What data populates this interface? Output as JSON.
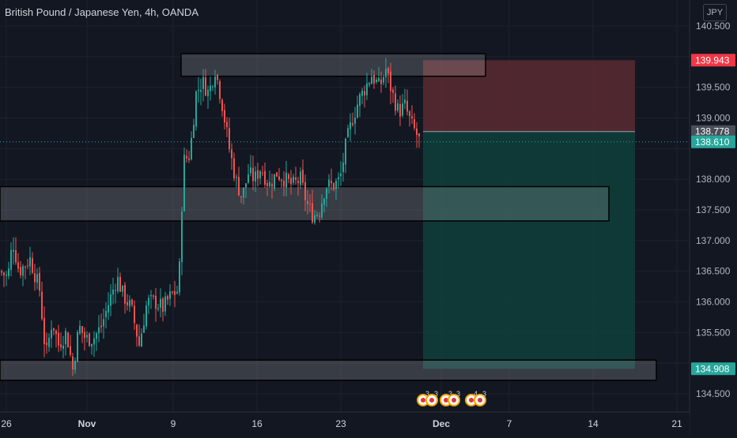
{
  "header": {
    "title": "British Pound / Japanese Yen, 4h, OANDA",
    "currency": "JPY"
  },
  "colors": {
    "background": "#131722",
    "up": "#26a69a",
    "down": "#ef5350",
    "grid": "#1e222d",
    "axis_text": "#b2b5be",
    "stop_zone": "#5a2a30",
    "target_zone": "#0f3d3a",
    "zone_box": "#3a3e49"
  },
  "chart_data": {
    "type": "candlestick",
    "y_ticks": [
      "140.500",
      "139.500",
      "139.000",
      "138.000",
      "137.500",
      "137.000",
      "136.500",
      "136.000",
      "135.500",
      "134.500"
    ],
    "y_range": [
      134.2,
      140.75
    ],
    "x_ticks": [
      "26",
      "Nov",
      "9",
      "16",
      "23",
      "Dec",
      "7",
      "14",
      "21"
    ],
    "price_labels": [
      {
        "text": "139.943",
        "value": 139.943,
        "kind": "stop"
      },
      {
        "text": "138.778",
        "value": 138.778,
        "kind": "entry"
      },
      {
        "text": "138.610",
        "value": 138.61,
        "kind": "current"
      },
      {
        "text": "134.908",
        "value": 134.908,
        "kind": "target"
      }
    ],
    "current_price": 138.61,
    "position": {
      "type": "short",
      "entry": 138.778,
      "stop": 139.943,
      "target": 134.908
    },
    "zones": [
      {
        "top": 140.05,
        "bottom": 139.68
      },
      {
        "top": 137.88,
        "bottom": 137.32
      },
      {
        "top": 135.05,
        "bottom": 134.72
      }
    ],
    "event_badges": [
      "3",
      "3",
      "3",
      "3",
      "4",
      "3"
    ],
    "candle_keyframes": [
      [
        0,
        136.5
      ],
      [
        10,
        136.4
      ],
      [
        16,
        137.0
      ],
      [
        24,
        136.5
      ],
      [
        38,
        136.7
      ],
      [
        50,
        136.2
      ],
      [
        58,
        135.1
      ],
      [
        66,
        135.7
      ],
      [
        74,
        135.3
      ],
      [
        84,
        135.5
      ],
      [
        92,
        134.9
      ],
      [
        100,
        135.6
      ],
      [
        108,
        135.4
      ],
      [
        118,
        135.4
      ],
      [
        128,
        135.6
      ],
      [
        138,
        136.0
      ],
      [
        148,
        136.4
      ],
      [
        156,
        136.1
      ],
      [
        166,
        135.9
      ],
      [
        176,
        135.3
      ],
      [
        186,
        136.0
      ],
      [
        196,
        136.0
      ],
      [
        206,
        135.9
      ],
      [
        216,
        136.1
      ],
      [
        226,
        136.2
      ],
      [
        232,
        138.3
      ],
      [
        240,
        138.4
      ],
      [
        248,
        139.4
      ],
      [
        256,
        139.6
      ],
      [
        264,
        139.4
      ],
      [
        272,
        139.8
      ],
      [
        280,
        139.3
      ],
      [
        290,
        138.5
      ],
      [
        298,
        138.0
      ],
      [
        306,
        137.7
      ],
      [
        314,
        138.1
      ],
      [
        322,
        138.0
      ],
      [
        330,
        138.2
      ],
      [
        340,
        137.9
      ],
      [
        350,
        138.1
      ],
      [
        360,
        138.0
      ],
      [
        370,
        137.9
      ],
      [
        380,
        138.0
      ],
      [
        388,
        137.6
      ],
      [
        396,
        137.4
      ],
      [
        404,
        137.5
      ],
      [
        412,
        137.9
      ],
      [
        422,
        137.9
      ],
      [
        430,
        138.0
      ],
      [
        438,
        138.6
      ],
      [
        446,
        139.0
      ],
      [
        454,
        139.3
      ],
      [
        462,
        139.5
      ],
      [
        470,
        139.7
      ],
      [
        480,
        139.5
      ],
      [
        488,
        139.8
      ],
      [
        496,
        139.4
      ],
      [
        504,
        139.1
      ],
      [
        512,
        139.2
      ],
      [
        520,
        138.9
      ],
      [
        528,
        138.7
      ],
      [
        531,
        138.6
      ]
    ]
  }
}
